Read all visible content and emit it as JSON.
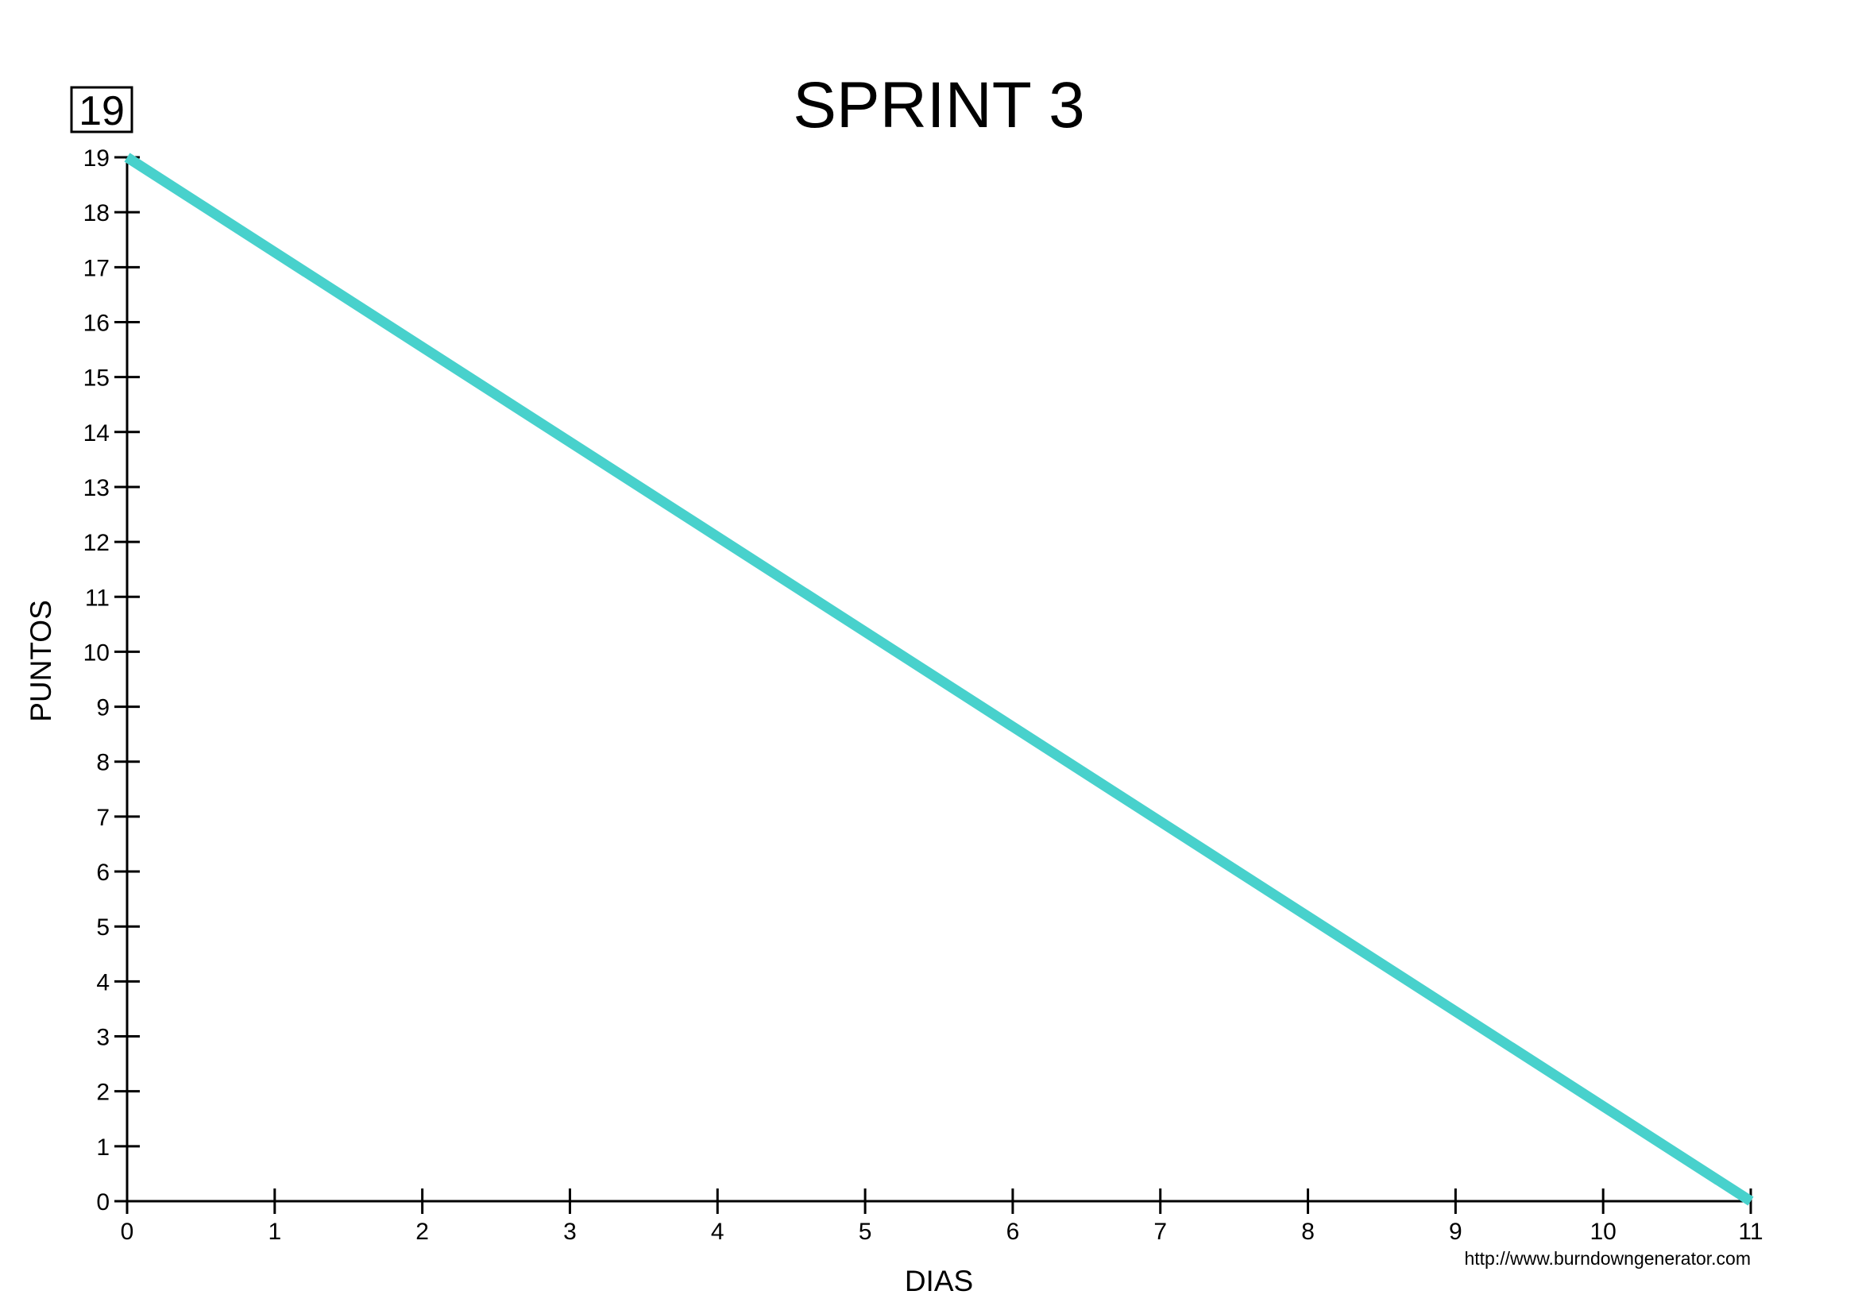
{
  "chart_data": {
    "type": "line",
    "title": "SPRINT 3",
    "xlabel": "DIAS",
    "ylabel": "PUNTOS",
    "total_points_label": "19",
    "footer": "http://www.burndowngenerator.com",
    "xlim": [
      0,
      11
    ],
    "ylim": [
      0,
      19
    ],
    "x_ticks": [
      "0",
      "1",
      "2",
      "3",
      "4",
      "5",
      "6",
      "7",
      "8",
      "9",
      "10",
      "11"
    ],
    "y_ticks": [
      "0",
      "1",
      "2",
      "3",
      "4",
      "5",
      "6",
      "7",
      "8",
      "9",
      "10",
      "11",
      "12",
      "13",
      "14",
      "15",
      "16",
      "17",
      "18",
      "19"
    ],
    "grid": false,
    "series": [
      {
        "color": "#48d1cc",
        "x": [
          0,
          11
        ],
        "y": [
          19,
          0
        ]
      }
    ]
  }
}
